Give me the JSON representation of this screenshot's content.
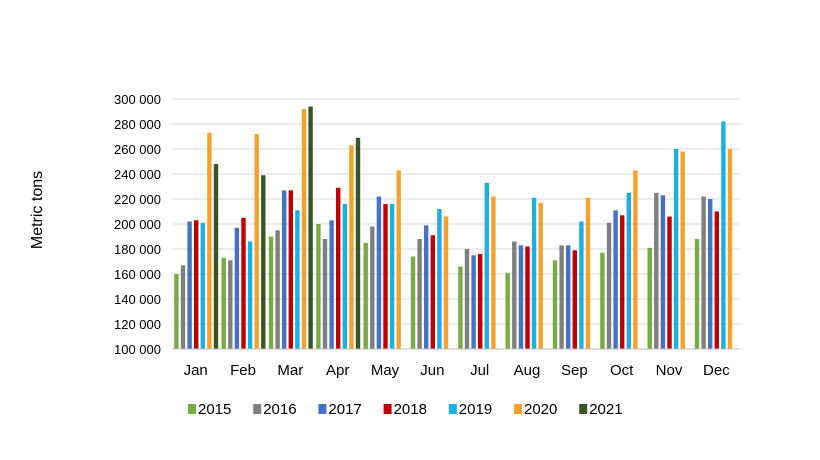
{
  "chart_data": {
    "type": "bar",
    "title": "",
    "xlabel": "",
    "ylabel": "Metric tons",
    "ylim": [
      100000,
      300000
    ],
    "yticks": [
      100000,
      120000,
      140000,
      160000,
      180000,
      200000,
      220000,
      240000,
      260000,
      280000,
      300000
    ],
    "ytick_labels": [
      "100 000",
      "120 000",
      "140 000",
      "160 000",
      "180 000",
      "200 000",
      "220 000",
      "240 000",
      "260 000",
      "280 000",
      "300 000"
    ],
    "grid": true,
    "legend_position": "bottom",
    "categories": [
      "Jan",
      "Feb",
      "Mar",
      "Apr",
      "May",
      "Jun",
      "Jul",
      "Aug",
      "Sep",
      "Oct",
      "Nov",
      "Dec"
    ],
    "series": [
      {
        "name": "2015",
        "color": "#77ab43",
        "values": [
          160000,
          173000,
          190000,
          200000,
          185000,
          174000,
          166000,
          161000,
          171000,
          177000,
          181000,
          188000
        ]
      },
      {
        "name": "2016",
        "color": "#7f7f7f",
        "values": [
          167000,
          171000,
          195000,
          188000,
          198000,
          188000,
          180000,
          186000,
          183000,
          201000,
          225000,
          222000
        ]
      },
      {
        "name": "2017",
        "color": "#4472c4",
        "values": [
          202000,
          197000,
          227000,
          203000,
          222000,
          199000,
          175000,
          183000,
          183000,
          211000,
          223000,
          220000
        ]
      },
      {
        "name": "2018",
        "color": "#c00000",
        "values": [
          203000,
          205000,
          227000,
          229000,
          216000,
          191000,
          176000,
          182000,
          179000,
          207000,
          206000,
          210000
        ]
      },
      {
        "name": "2019",
        "color": "#1cb0e2",
        "values": [
          201000,
          186000,
          211000,
          216000,
          216000,
          212000,
          233000,
          221000,
          202000,
          225000,
          260000,
          282000
        ]
      },
      {
        "name": "2020",
        "color": "#f4a22c",
        "values": [
          273000,
          272000,
          292000,
          263000,
          243000,
          206000,
          222000,
          217000,
          221000,
          243000,
          258000,
          260000
        ]
      },
      {
        "name": "2021",
        "color": "#375623",
        "values": [
          248000,
          239000,
          294000,
          269000,
          null,
          null,
          null,
          null,
          null,
          null,
          null,
          null
        ]
      }
    ]
  }
}
